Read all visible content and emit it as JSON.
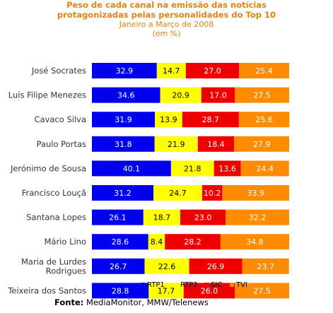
{
  "chart_data": {
    "type": "bar",
    "orientation": "horizontal",
    "stacked": true,
    "title": "Peso de cada canal na emissão das notícias protagonizadas pelas personalidades do Top 10",
    "title_lines": [
      "Peso de cada canal na emissão das notícias",
      "protagonizadas pelas personalidades do Top 10"
    ],
    "subtitle_lines": [
      "Janeiro a Março de 2008",
      "(em %)"
    ],
    "xlim": [
      0,
      100
    ],
    "categories": [
      [
        "José Socrates"
      ],
      [
        "Luís Filipe Menezes"
      ],
      [
        "Cavaco Silva"
      ],
      [
        "Paulo Portas"
      ],
      [
        "Jerónimo de Sousa"
      ],
      [
        "Francisco Louçã"
      ],
      [
        "Santana Lopes"
      ],
      [
        "Mário Lino"
      ],
      [
        "Maria de Lurdes",
        "Rodrigues"
      ],
      [
        "Teixeira dos Santos"
      ]
    ],
    "series": [
      {
        "name": "RTP1",
        "color": "#0000ee",
        "label_color": "#ffffff",
        "values": [
          32.9,
          34.6,
          31.9,
          31.8,
          40.1,
          31.2,
          26.1,
          28.6,
          26.7,
          28.8
        ]
      },
      {
        "name": "RTP2",
        "color": "#ffff00",
        "label_color": "#000000",
        "values": [
          14.7,
          20.9,
          13.9,
          21.9,
          21.8,
          24.7,
          18.7,
          8.4,
          22.6,
          17.7
        ]
      },
      {
        "name": "SIC",
        "color": "#ee0000",
        "label_color": "#ffffff",
        "values": [
          27.0,
          17.0,
          28.7,
          18.4,
          13.6,
          10.2,
          23.0,
          28.2,
          26.9,
          26.0
        ]
      },
      {
        "name": "TVI",
        "color": "#ff8c00",
        "label_color": "#ffffff",
        "values": [
          25.4,
          27.5,
          25.6,
          27.9,
          24.4,
          33.9,
          32.2,
          34.8,
          23.7,
          27.5
        ]
      }
    ],
    "legend_position": "bottom",
    "grid": false
  },
  "source": {
    "label": "Fonte:",
    "text": "MediaMonitor, MMW/Telenews"
  }
}
